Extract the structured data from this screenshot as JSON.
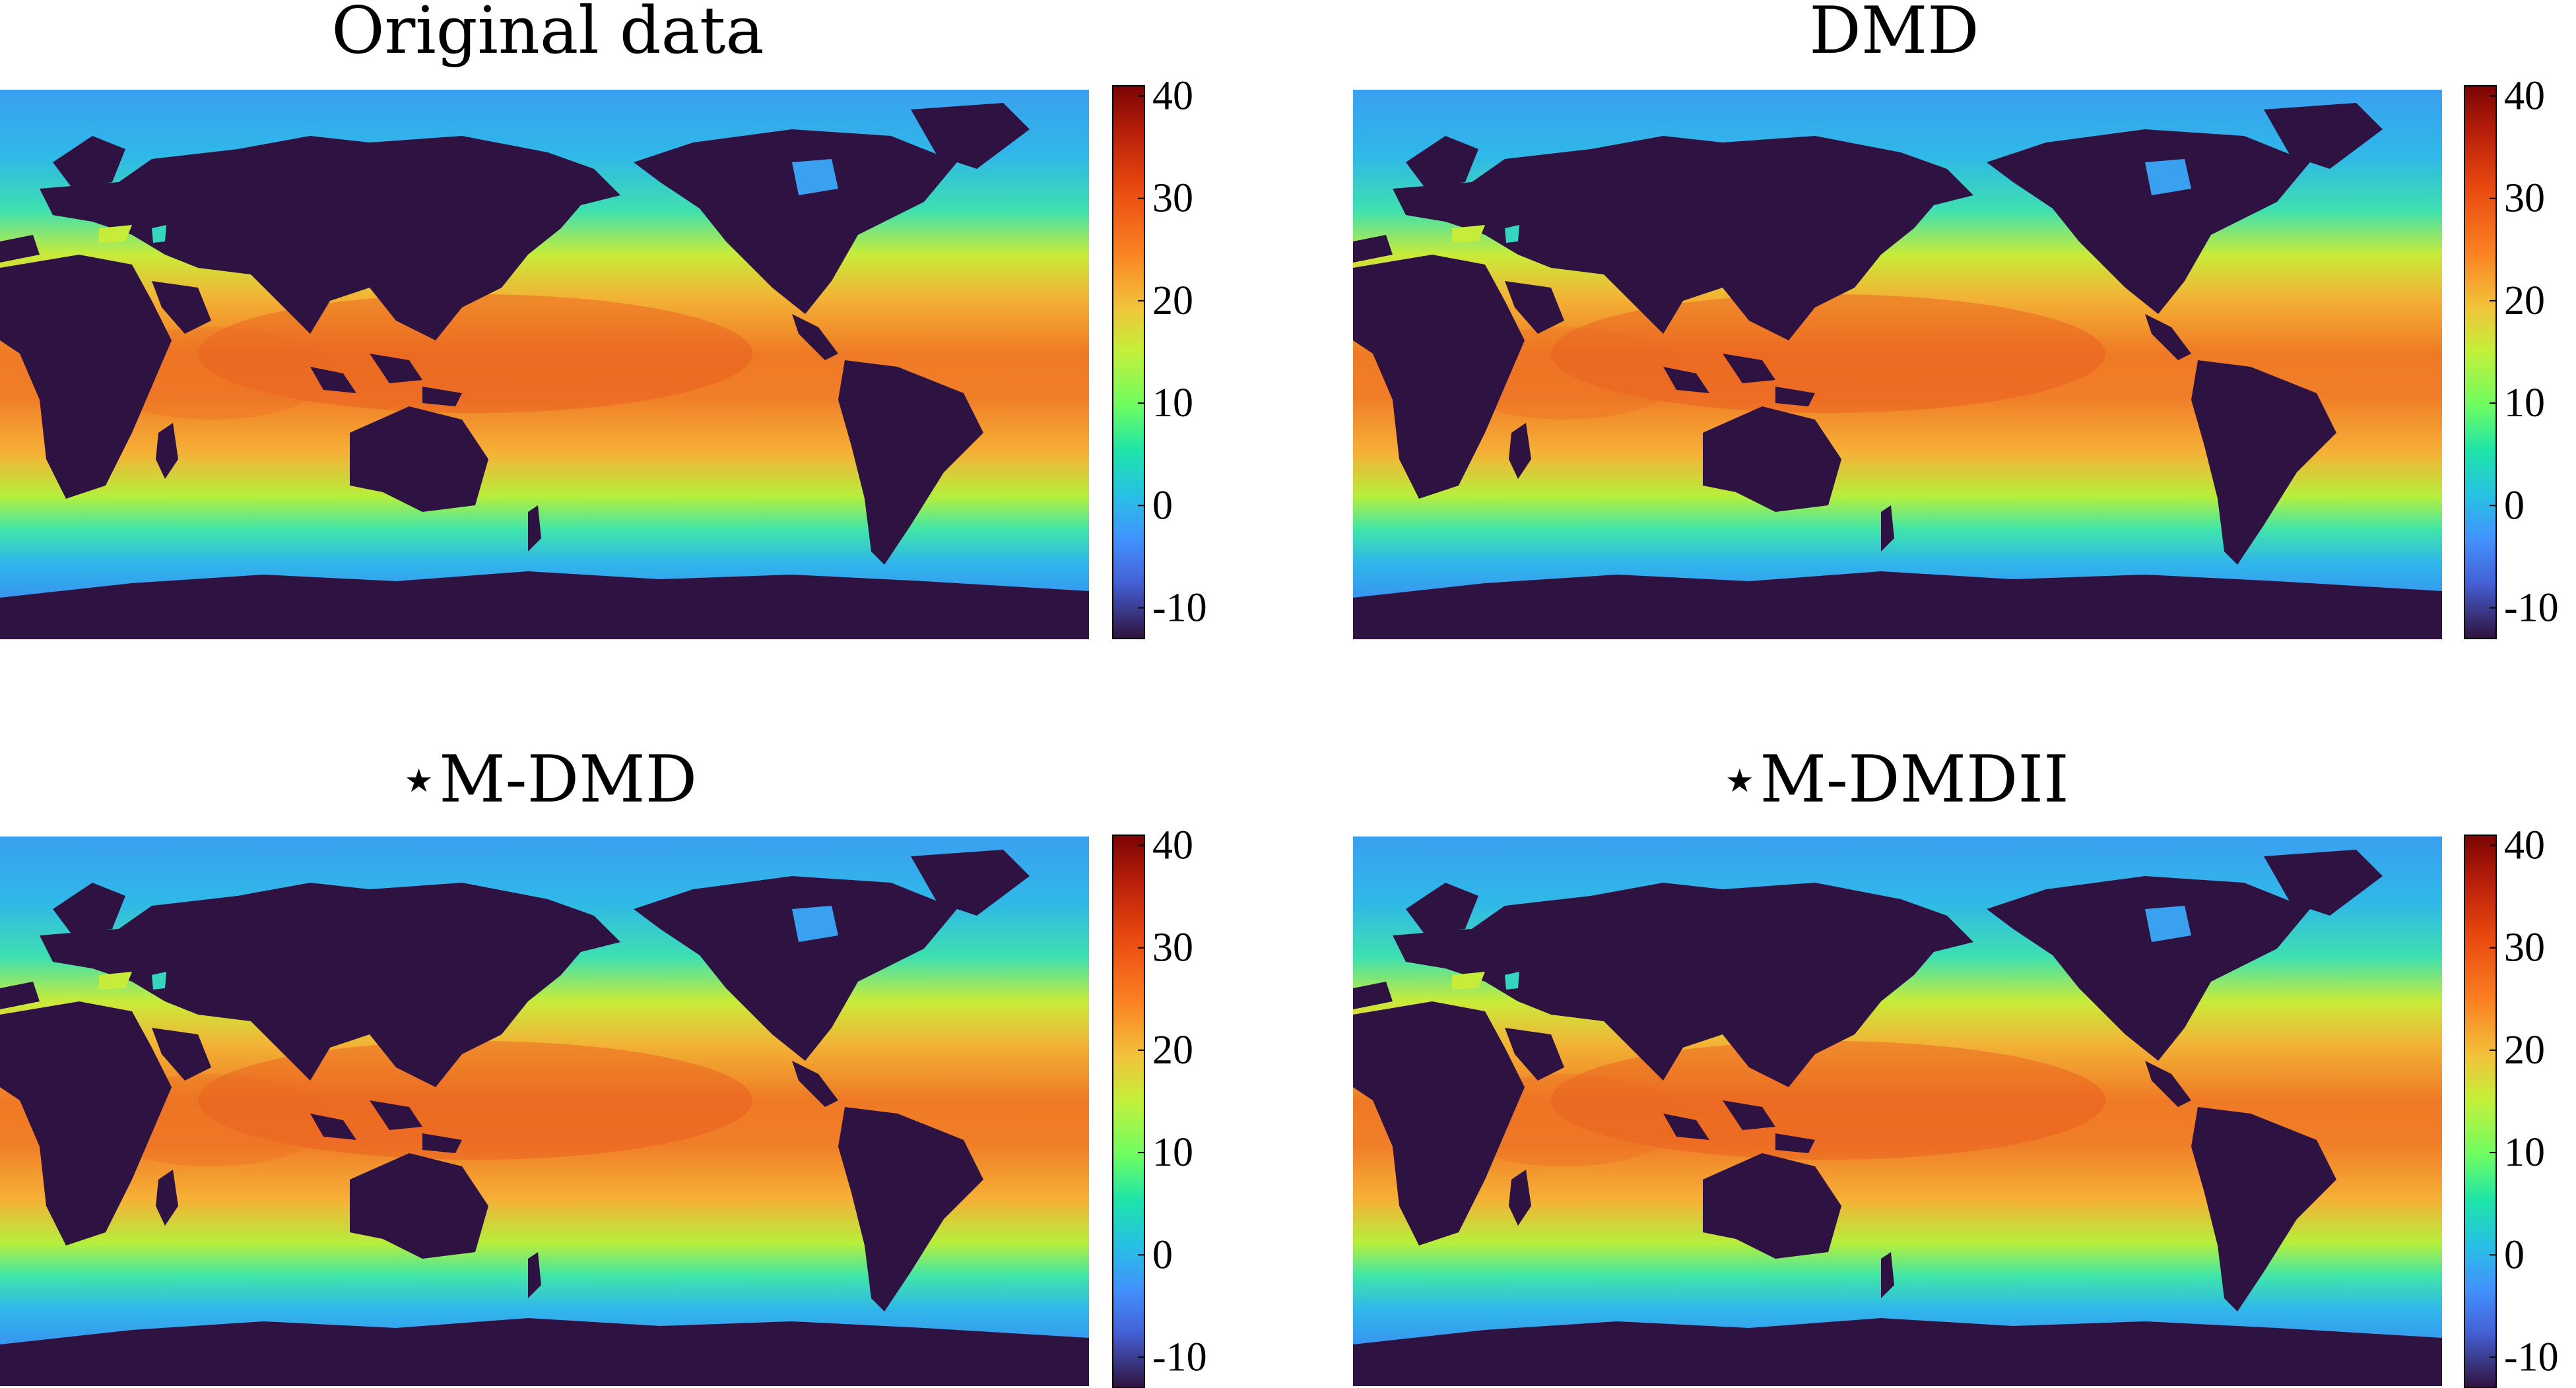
{
  "chart_data": [
    {
      "type": "heatmap",
      "title": "Original data",
      "colorbar": {
        "ticks": [
          40,
          30,
          20,
          10,
          0,
          -10
        ],
        "range": [
          -13,
          41
        ],
        "colormap": "turbo"
      },
      "land_color": "#2e1342"
    },
    {
      "type": "heatmap",
      "title": "DMD",
      "colorbar": {
        "ticks": [
          40,
          30,
          20,
          10,
          0,
          -10
        ],
        "range": [
          -13,
          41
        ],
        "colormap": "turbo"
      },
      "land_color": "#2e1342"
    },
    {
      "type": "heatmap",
      "title": "⋆M-DMD",
      "colorbar": {
        "ticks": [
          40,
          30,
          20,
          10,
          0,
          -10
        ],
        "range": [
          -13,
          41
        ],
        "colormap": "turbo"
      },
      "land_color": "#2e1342"
    },
    {
      "type": "heatmap",
      "title": "⋆M-DMDII",
      "colorbar": {
        "ticks": [
          40,
          30,
          20,
          10,
          0,
          -10
        ],
        "range": [
          -13,
          41
        ],
        "colormap": "turbo"
      },
      "land_color": "#2e1342"
    }
  ]
}
